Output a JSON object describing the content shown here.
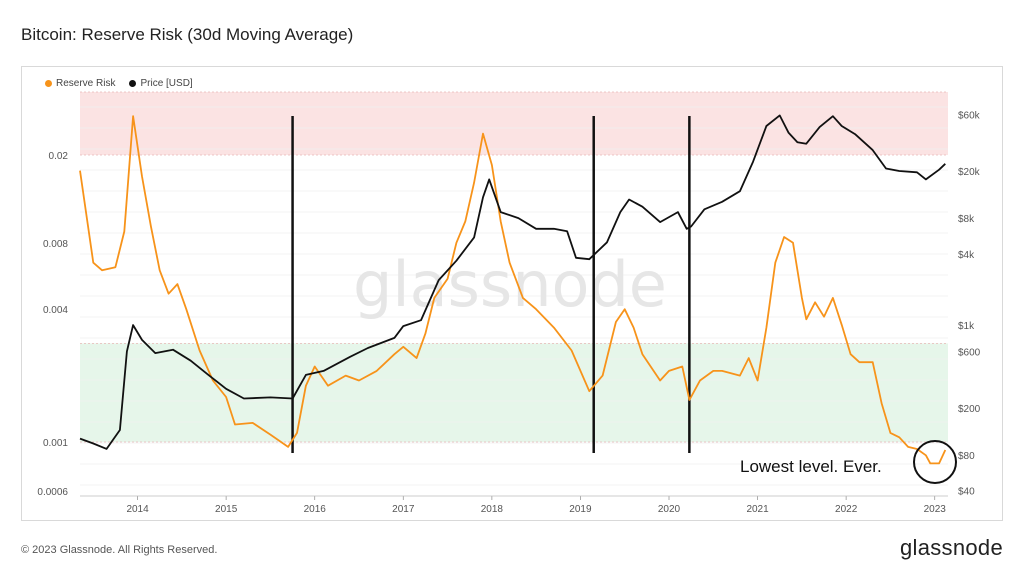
{
  "title": "Bitcoin: Reserve Risk (30d Moving Average)",
  "legend": [
    {
      "label": "Reserve Risk",
      "color": "#f7931a"
    },
    {
      "label": "Price [USD]",
      "color": "#111111"
    }
  ],
  "watermark": "glassnode",
  "annotation": "Lowest level. Ever.",
  "footer": "© 2023 Glassnode. All Rights Reserved.",
  "brand": "glassnode",
  "chart_data": {
    "type": "line",
    "title": "Bitcoin: Reserve Risk (30d Moving Average)",
    "x_range": [
      2013.35,
      2023.15
    ],
    "x_ticks": [
      "2014",
      "2015",
      "2016",
      "2017",
      "2018",
      "2019",
      "2020",
      "2021",
      "2022",
      "2023"
    ],
    "left_axis": {
      "label": "Reserve Risk",
      "scale": "log",
      "range": [
        0.0006,
        0.05
      ],
      "ticks": [
        "0.0006",
        "0.001",
        "0.004",
        "0.008",
        "0.02"
      ]
    },
    "right_axis": {
      "label": "Price [USD]",
      "scale": "log",
      "range": [
        40,
        100000
      ],
      "ticks": [
        "$40",
        "$80",
        "$200",
        "$600",
        "$1k",
        "$4k",
        "$8k",
        "$20k",
        "$60k"
      ]
    },
    "bands": [
      {
        "name": "overheated",
        "from": 0.02,
        "to": 0.05,
        "color": "#fbe3e3"
      },
      {
        "name": "opportunity",
        "from": 0.001,
        "to": 0.0028,
        "color": "#e6f6ea"
      }
    ],
    "vertical_markers": [
      2015.75,
      2019.15,
      2020.23
    ],
    "series": [
      {
        "name": "Reserve Risk",
        "color": "#f7931a",
        "axis": "left",
        "x": [
          2013.35,
          2013.5,
          2013.6,
          2013.75,
          2013.85,
          2013.95,
          2014.05,
          2014.15,
          2014.25,
          2014.35,
          2014.45,
          2014.55,
          2014.7,
          2014.85,
          2015.0,
          2015.1,
          2015.3,
          2015.5,
          2015.7,
          2015.8,
          2015.9,
          2016.0,
          2016.15,
          2016.35,
          2016.5,
          2016.7,
          2016.9,
          2017.0,
          2017.15,
          2017.25,
          2017.35,
          2017.5,
          2017.6,
          2017.7,
          2017.8,
          2017.9,
          2018.0,
          2018.1,
          2018.2,
          2018.35,
          2018.5,
          2018.7,
          2018.9,
          2019.1,
          2019.25,
          2019.4,
          2019.5,
          2019.6,
          2019.7,
          2019.9,
          2020.0,
          2020.15,
          2020.23,
          2020.35,
          2020.5,
          2020.6,
          2020.8,
          2020.9,
          2021.0,
          2021.1,
          2021.2,
          2021.3,
          2021.4,
          2021.5,
          2021.55,
          2021.65,
          2021.75,
          2021.85,
          2021.95,
          2022.05,
          2022.15,
          2022.3,
          2022.4,
          2022.5,
          2022.6,
          2022.7,
          2022.8,
          2022.9,
          2022.95,
          2023.05,
          2023.12
        ],
        "y": [
          0.017,
          0.0065,
          0.006,
          0.0062,
          0.009,
          0.03,
          0.016,
          0.0095,
          0.006,
          0.0047,
          0.0052,
          0.004,
          0.0026,
          0.0019,
          0.0016,
          0.0012,
          0.00122,
          0.00108,
          0.00095,
          0.0011,
          0.0018,
          0.0022,
          0.0018,
          0.002,
          0.0019,
          0.0021,
          0.0025,
          0.0027,
          0.0024,
          0.0031,
          0.0045,
          0.0055,
          0.008,
          0.01,
          0.015,
          0.025,
          0.018,
          0.01,
          0.0065,
          0.0045,
          0.004,
          0.0033,
          0.0026,
          0.0017,
          0.002,
          0.0035,
          0.004,
          0.0033,
          0.0025,
          0.0019,
          0.0021,
          0.0022,
          0.00155,
          0.0019,
          0.0021,
          0.0021,
          0.002,
          0.0024,
          0.0019,
          0.0033,
          0.0065,
          0.0085,
          0.008,
          0.0045,
          0.0036,
          0.0043,
          0.0037,
          0.0045,
          0.0034,
          0.0025,
          0.0023,
          0.0023,
          0.0015,
          0.0011,
          0.00105,
          0.00095,
          0.00093,
          0.00087,
          0.0008,
          0.0008,
          0.00092
        ]
      },
      {
        "name": "Price [USD]",
        "color": "#111111",
        "axis": "right",
        "x": [
          2013.35,
          2013.5,
          2013.65,
          2013.8,
          2013.88,
          2013.95,
          2014.05,
          2014.2,
          2014.4,
          2014.6,
          2014.8,
          2015.0,
          2015.2,
          2015.5,
          2015.75,
          2015.9,
          2016.1,
          2016.4,
          2016.6,
          2016.9,
          2017.0,
          2017.2,
          2017.4,
          2017.6,
          2017.8,
          2017.9,
          2017.97,
          2018.1,
          2018.3,
          2018.5,
          2018.7,
          2018.85,
          2018.95,
          2019.1,
          2019.3,
          2019.45,
          2019.55,
          2019.7,
          2019.9,
          2020.1,
          2020.2,
          2020.25,
          2020.4,
          2020.6,
          2020.8,
          2020.95,
          2021.1,
          2021.25,
          2021.35,
          2021.45,
          2021.55,
          2021.7,
          2021.85,
          2021.95,
          2022.1,
          2022.3,
          2022.45,
          2022.6,
          2022.8,
          2022.9,
          2023.05,
          2023.12
        ],
        "y": [
          110,
          100,
          90,
          130,
          600,
          1000,
          750,
          580,
          620,
          500,
          380,
          290,
          240,
          245,
          240,
          380,
          410,
          540,
          640,
          780,
          980,
          1100,
          2400,
          3500,
          5500,
          12000,
          17000,
          9000,
          8000,
          6500,
          6500,
          6200,
          3700,
          3600,
          5000,
          9000,
          11500,
          10000,
          7400,
          9000,
          6500,
          6800,
          9500,
          11000,
          13500,
          24000,
          48000,
          59000,
          42000,
          35000,
          34000,
          47000,
          58000,
          48000,
          41000,
          30000,
          21000,
          20000,
          19500,
          17000,
          20500,
          23000
        ]
      }
    ]
  }
}
